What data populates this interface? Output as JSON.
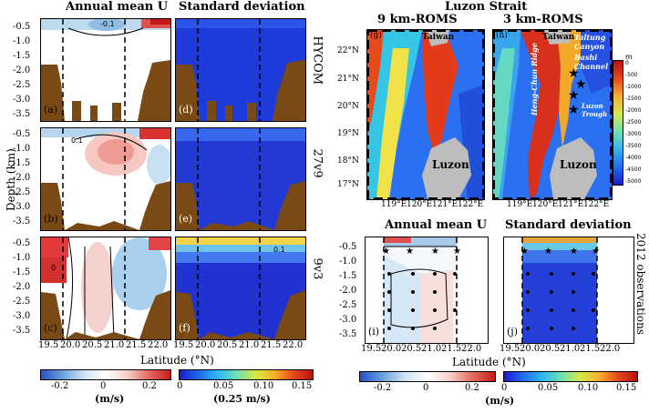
{
  "titles": {
    "col_mean": "Annual mean U",
    "col_std": "Standard deviation",
    "map_title": "Luzon Strait",
    "map_left": "9 km-ROMS",
    "map_right": "3 km-ROMS",
    "obs_mean": "Annual mean U",
    "obs_std": "Standard deviation"
  },
  "axis": {
    "ylabel": "Depth (km)",
    "xlabel_left": "Latitude (°N)",
    "xlabel_right": "Latitude (°N)",
    "depth_ticks": [
      "-0.5",
      "-1.0",
      "-1.5",
      "-2.0",
      "-2.5",
      "-3.0",
      "-3.5"
    ],
    "lat_ticks": [
      "19.5",
      "20.0",
      "20.5",
      "21.0",
      "21.5",
      "22.0"
    ],
    "map_lat_ticks": [
      "22°N",
      "21°N",
      "20°N",
      "19°N",
      "18°N",
      "17°N"
    ],
    "map_lon_ticks": [
      "119°E",
      "120°E",
      "121°E",
      "122°E"
    ]
  },
  "row_labels": {
    "hycom": "HYCOM",
    "r27v9": "27v9",
    "r9v3": "9v3",
    "obs": "2012 observations"
  },
  "panel_labels": {
    "a": "(a)",
    "b": "(b)",
    "c": "(c)",
    "d": "(d)",
    "e": "(e)",
    "f": "(f)",
    "g": "(g)",
    "h": "(h)",
    "i": "(i)",
    "j": "(j)"
  },
  "map_text": {
    "taiwan": "Taiwan",
    "luzon": "Luzon",
    "ridge": "Heng-Chun Ridge",
    "taltung": "Taltung Canyon",
    "bashi": "Bashi Channel",
    "trough": "Luzon Trough",
    "depth_unit": "m",
    "depth_ticks": [
      "0",
      "-500",
      "-1000",
      "-1500",
      "-2000",
      "-2500",
      "-3000",
      "-3500",
      "-4000",
      "-4500",
      "-5000"
    ]
  },
  "contours": {
    "c1": "-0.1",
    "c2": "0.1",
    "c3": "0",
    "c4": "0.1",
    "c5": "0.05",
    "c6": "0.03",
    "c7": "0.1"
  },
  "colorbars": {
    "mean_ticks": [
      "-0.2",
      "0",
      "0.2"
    ],
    "mean_unit": "(m/s)",
    "std_ticks": [
      "0",
      "0.05",
      "0.10",
      "0.15"
    ],
    "std_unit": "(0.25  m/s)",
    "obs_mean_ticks": [
      "-0.2",
      "0",
      "0.2"
    ],
    "obs_mean_unit": "(m/s)",
    "obs_std_ticks": [
      "0",
      "0.05",
      "0.10",
      "0.15"
    ]
  },
  "colors": {
    "land": "#7a4a14",
    "deep_blue": "#1a1acc",
    "red": "#d62020",
    "map_gray": "#bdbdbd"
  }
}
